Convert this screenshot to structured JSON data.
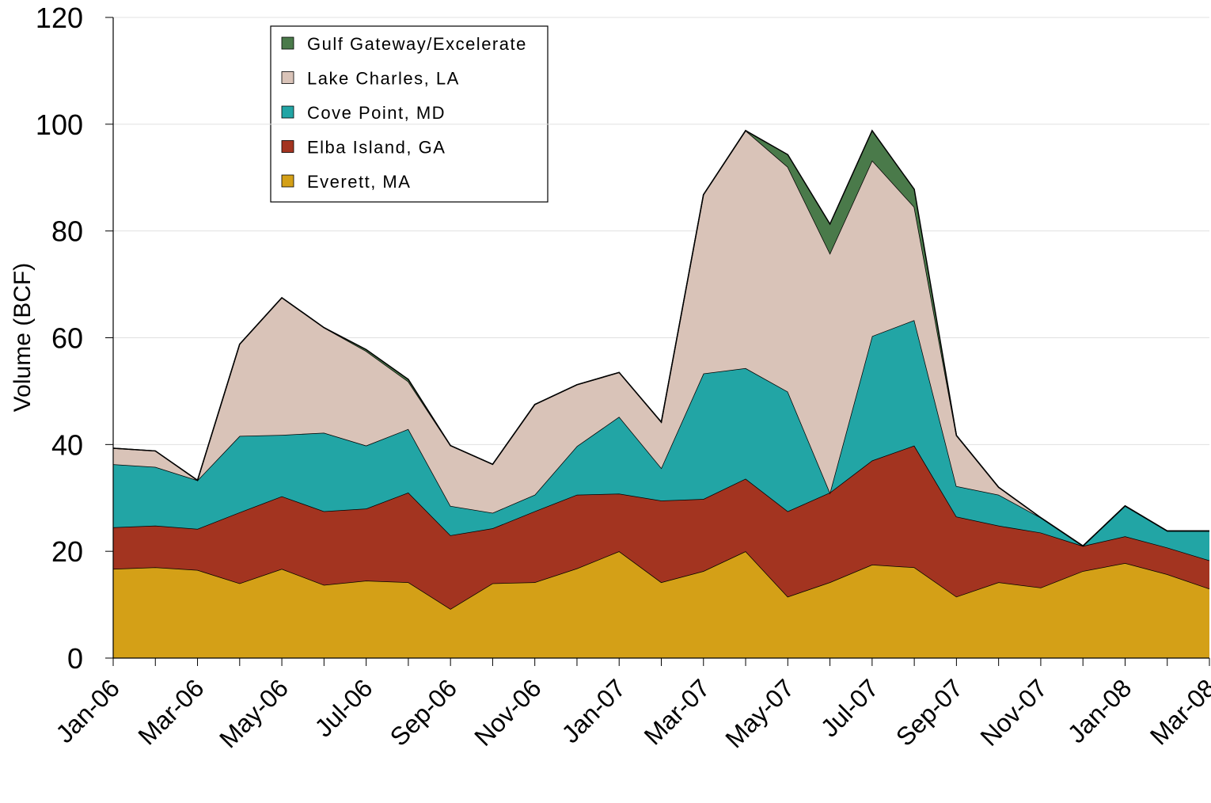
{
  "chart_data": {
    "type": "stacked-area",
    "y_label": "Volume (BCF)",
    "categories": [
      "Jan-06",
      null,
      "Mar-06",
      null,
      "May-06",
      null,
      "Jul-06",
      null,
      "Sep-06",
      null,
      "Nov-06",
      null,
      "Jan-07",
      null,
      "Mar-07",
      null,
      "May-07",
      null,
      "Jul-07",
      null,
      "Sep-07",
      null,
      "Nov-07",
      null,
      "Jan-08",
      null,
      "Mar-08"
    ],
    "series": [
      {
        "name": "Gulf Gateway/Excelerate",
        "color": "#4a7a4a",
        "values": [
          0,
          0,
          0,
          0,
          0,
          0,
          0.3,
          0.4,
          0,
          0,
          0,
          0,
          0,
          0,
          0,
          0,
          2.3,
          5.5,
          5.6,
          3.3,
          0,
          0,
          0,
          0,
          0,
          0,
          0
        ]
      },
      {
        "name": "Lake Charles, LA",
        "color": "#d9c3b8",
        "values": [
          3,
          3,
          0,
          17.2,
          25.7,
          19.7,
          17.7,
          8.9,
          11.3,
          9.1,
          16.9,
          11.5,
          8.3,
          8.6,
          33.5,
          44.5,
          42.1,
          44.8,
          32.9,
          21.2,
          9.5,
          1.4,
          0,
          0,
          0,
          0,
          0
        ]
      },
      {
        "name": "Cove Point, MD",
        "color": "#22a5a5",
        "values": [
          11.8,
          11,
          9.1,
          14.3,
          11.5,
          14.7,
          11.8,
          11.9,
          5.5,
          2.9,
          3.1,
          9.1,
          14.4,
          6.1,
          23.5,
          20.7,
          22.4,
          0,
          23.3,
          23.5,
          5.7,
          5.8,
          2.8,
          0,
          5.7,
          3.1,
          5.5
        ]
      },
      {
        "name": "Elba Island, GA",
        "color": "#a33420",
        "values": [
          7.8,
          7.8,
          7.7,
          13.3,
          13.6,
          13.8,
          13.5,
          16.8,
          13.8,
          10.3,
          13.3,
          13.8,
          10.8,
          15.3,
          13.5,
          13.6,
          16,
          16.8,
          19.5,
          22.8,
          15,
          10.6,
          10.3,
          4.7,
          5,
          5,
          5.3
        ]
      },
      {
        "name": "Everett, MA",
        "color": "#d4a017",
        "values": [
          16.7,
          17,
          16.5,
          14,
          16.7,
          13.7,
          14.5,
          14.2,
          9.2,
          14,
          14.2,
          16.8,
          20,
          14.2,
          16.3,
          20,
          11.5,
          14.2,
          17.5,
          17,
          11.5,
          14.2,
          13.2,
          16.3,
          17.8,
          15.7,
          13
        ]
      }
    ],
    "ylim": [
      0,
      120
    ],
    "yticks": [
      0,
      20,
      40,
      60,
      80,
      100,
      120
    ],
    "grid": true
  }
}
